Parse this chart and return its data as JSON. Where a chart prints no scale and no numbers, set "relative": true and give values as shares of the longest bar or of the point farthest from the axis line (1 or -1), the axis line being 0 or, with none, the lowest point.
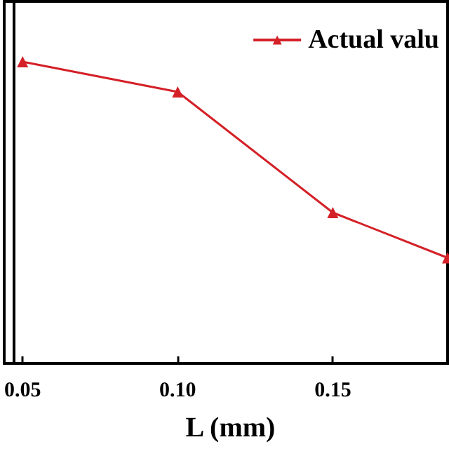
{
  "chart_data": {
    "type": "line",
    "xlabel": "L (mm)",
    "relative": true,
    "x": [
      0.05,
      0.1,
      0.15,
      0.187
    ],
    "xlim": [
      0.047,
      0.187
    ],
    "xticks": [
      0.05,
      {
        "value": 0.1,
        "label": "0.10"
      },
      {
        "value": 0.15,
        "label": "0.15"
      }
    ],
    "series": [
      {
        "name": "Actual valu",
        "color": "#d42027",
        "values": [
          1,
          0.9,
          0.5,
          0.35
        ]
      }
    ],
    "marker": "triangle",
    "line_style": "solid",
    "legend": "top right",
    "grid": false
  }
}
